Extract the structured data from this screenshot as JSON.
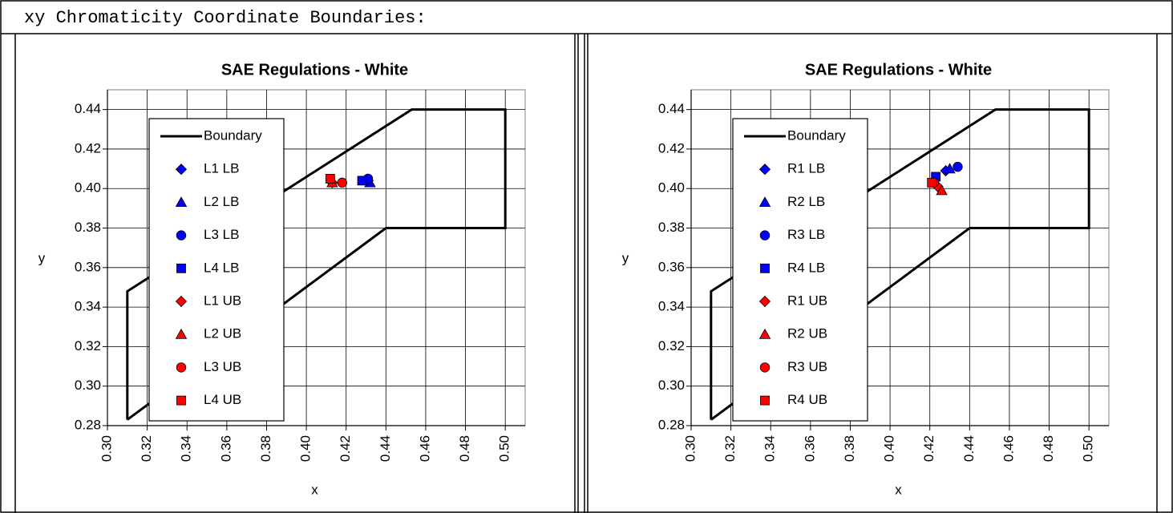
{
  "heading": "xy Chromaticity Coordinate Boundaries:",
  "chart_data": [
    {
      "type": "scatter",
      "title": "SAE Regulations - White",
      "x_label": "x",
      "y_label": "y",
      "xlim": [
        0.3,
        0.51
      ],
      "ylim": [
        0.28,
        0.45
      ],
      "xticks": [
        {
          "value": 0.3,
          "label": "0.30"
        },
        0.32,
        0.34,
        0.36,
        0.38,
        {
          "value": 0.4,
          "label": "0.40"
        },
        0.42,
        0.44,
        0.46,
        0.48,
        {
          "value": 0.5,
          "label": "0.50"
        }
      ],
      "yticks": [
        0.28,
        {
          "value": 0.3,
          "label": "0.30"
        },
        0.32,
        0.34,
        0.36,
        0.38,
        {
          "value": 0.4,
          "label": "0.40"
        },
        0.42,
        0.44
      ],
      "grid": true,
      "series": [
        {
          "name": "Boundary",
          "kind": "line",
          "color": "#000000",
          "x": [
            0.31,
            0.31,
            0.453,
            0.5,
            0.5,
            0.44,
            0.31
          ],
          "y": [
            0.283,
            0.348,
            0.44,
            0.44,
            0.38,
            0.38,
            0.283
          ]
        },
        {
          "name": "L1 LB",
          "marker": "diamond",
          "color": "#0000ff",
          "x": [
            0.431
          ],
          "y": [
            0.404
          ]
        },
        {
          "name": "L2 LB",
          "marker": "triangle",
          "color": "#0000ff",
          "x": [
            0.432
          ],
          "y": [
            0.403
          ]
        },
        {
          "name": "L3 LB",
          "marker": "circle",
          "color": "#0000ff",
          "x": [
            0.431
          ],
          "y": [
            0.405
          ]
        },
        {
          "name": "L4 LB",
          "marker": "square",
          "color": "#0000ff",
          "x": [
            0.428
          ],
          "y": [
            0.404
          ]
        },
        {
          "name": "L1 UB",
          "marker": "diamond",
          "color": "#ff0000",
          "x": [
            0.413
          ],
          "y": [
            0.403
          ]
        },
        {
          "name": "L2 UB",
          "marker": "triangle",
          "color": "#ff0000",
          "x": [
            0.413
          ],
          "y": [
            0.403
          ]
        },
        {
          "name": "L3 UB",
          "marker": "circle",
          "color": "#ff0000",
          "x": [
            0.418
          ],
          "y": [
            0.403
          ]
        },
        {
          "name": "L4 UB",
          "marker": "square",
          "color": "#ff0000",
          "x": [
            0.412
          ],
          "y": [
            0.405
          ]
        }
      ]
    },
    {
      "type": "scatter",
      "title": "SAE Regulations - White",
      "x_label": "x",
      "y_label": "y",
      "xlim": [
        0.3,
        0.51
      ],
      "ylim": [
        0.28,
        0.45
      ],
      "xticks": [
        {
          "value": 0.3,
          "label": "0.30"
        },
        0.32,
        0.34,
        0.36,
        0.38,
        {
          "value": 0.4,
          "label": "0.40"
        },
        0.42,
        0.44,
        0.46,
        0.48,
        {
          "value": 0.5,
          "label": "0.50"
        }
      ],
      "yticks": [
        0.28,
        {
          "value": 0.3,
          "label": "0.30"
        },
        0.32,
        0.34,
        0.36,
        0.38,
        {
          "value": 0.4,
          "label": "0.40"
        },
        0.42,
        0.44
      ],
      "grid": true,
      "series": [
        {
          "name": "Boundary",
          "kind": "line",
          "color": "#000000",
          "x": [
            0.31,
            0.31,
            0.453,
            0.5,
            0.5,
            0.44,
            0.31
          ],
          "y": [
            0.283,
            0.348,
            0.44,
            0.44,
            0.38,
            0.38,
            0.283
          ]
        },
        {
          "name": "R1 LB",
          "marker": "diamond",
          "color": "#0000ff",
          "x": [
            0.428
          ],
          "y": [
            0.409
          ]
        },
        {
          "name": "R2 LB",
          "marker": "triangle",
          "color": "#0000ff",
          "x": [
            0.43
          ],
          "y": [
            0.41
          ]
        },
        {
          "name": "R3 LB",
          "marker": "circle",
          "color": "#0000ff",
          "x": [
            0.434
          ],
          "y": [
            0.411
          ]
        },
        {
          "name": "R4 LB",
          "marker": "square",
          "color": "#0000ff",
          "x": [
            0.423
          ],
          "y": [
            0.406
          ]
        },
        {
          "name": "R1 UB",
          "marker": "diamond",
          "color": "#ff0000",
          "x": [
            0.424
          ],
          "y": [
            0.401
          ]
        },
        {
          "name": "R2 UB",
          "marker": "triangle",
          "color": "#ff0000",
          "x": [
            0.426
          ],
          "y": [
            0.399
          ]
        },
        {
          "name": "R3 UB",
          "marker": "circle",
          "color": "#ff0000",
          "x": [
            0.422
          ],
          "y": [
            0.403
          ]
        },
        {
          "name": "R4 UB",
          "marker": "square",
          "color": "#ff0000",
          "x": [
            0.421
          ],
          "y": [
            0.403
          ]
        }
      ]
    }
  ]
}
